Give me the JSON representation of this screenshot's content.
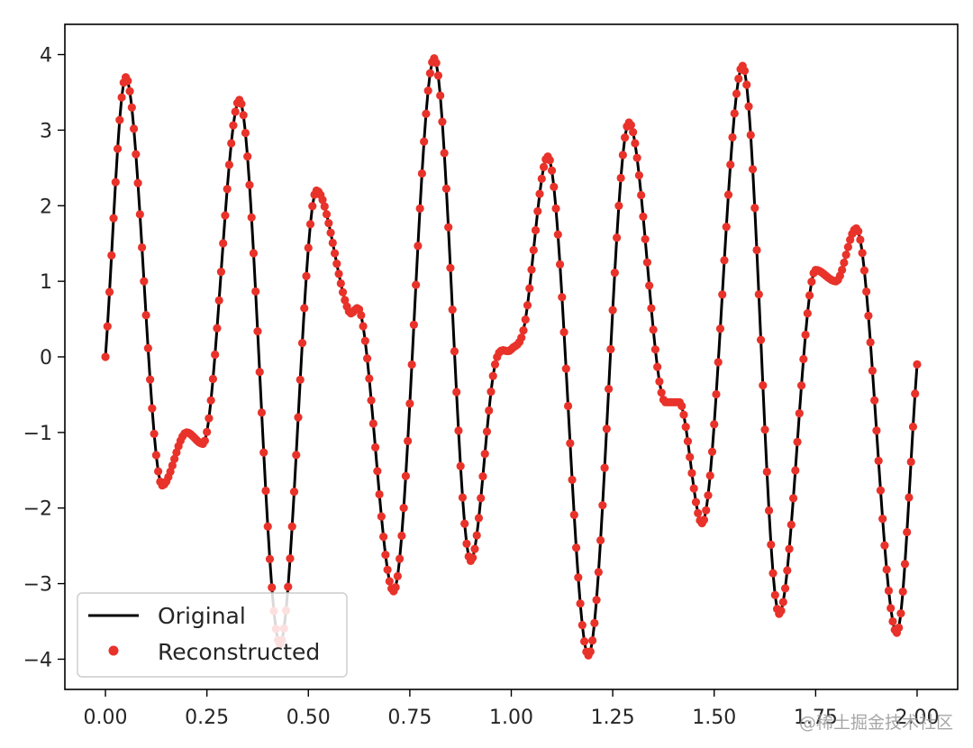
{
  "chart_data": {
    "type": "line",
    "title": "",
    "xlabel": "",
    "ylabel": "",
    "xlim": [
      -0.1,
      2.1
    ],
    "ylim": [
      -4.4,
      4.4
    ],
    "x_ticks": [
      0.0,
      0.25,
      0.5,
      0.75,
      1.0,
      1.25,
      1.5,
      1.75,
      2.0
    ],
    "x_tick_labels": [
      "0.00",
      "0.25",
      "0.50",
      "0.75",
      "1.00",
      "1.25",
      "1.50",
      "1.75",
      "2.00"
    ],
    "y_ticks": [
      4,
      3,
      2,
      1,
      0,
      -1,
      -2,
      -3,
      -4
    ],
    "y_tick_labels": [
      "4",
      "3",
      "2",
      "1",
      "0",
      "−1",
      "−2",
      "−3",
      "−4"
    ],
    "grid": false,
    "legend_position": "lower-left",
    "sample_count": 401,
    "series": [
      {
        "name": "Original",
        "style": "line",
        "color": "#000000",
        "x": [
          0.0,
          0.05,
          0.14,
          0.2,
          0.24,
          0.33,
          0.43,
          0.52,
          0.6,
          0.63,
          0.71,
          0.81,
          0.9,
          0.96,
          1.0,
          1.03,
          1.09,
          1.19,
          1.29,
          1.38,
          1.41,
          1.42,
          1.47,
          1.57,
          1.66,
          1.75,
          1.8,
          1.85,
          1.95,
          2.0
        ],
        "y": [
          0.0,
          3.7,
          -1.7,
          -1.0,
          -1.15,
          3.4,
          -3.8,
          2.2,
          0.6,
          0.55,
          -3.1,
          3.95,
          -2.7,
          -0.1,
          0.1,
          0.35,
          2.65,
          -3.95,
          3.1,
          -0.6,
          -0.6,
          -0.65,
          -2.2,
          3.85,
          -3.4,
          1.15,
          1.0,
          1.7,
          -3.65,
          -0.1
        ]
      },
      {
        "name": "Reconstructed",
        "style": "markers",
        "color": "#e8322a",
        "x": [
          0.0,
          0.05,
          0.14,
          0.2,
          0.24,
          0.33,
          0.43,
          0.52,
          0.6,
          0.63,
          0.71,
          0.81,
          0.9,
          0.96,
          1.0,
          1.03,
          1.09,
          1.19,
          1.29,
          1.38,
          1.41,
          1.42,
          1.47,
          1.57,
          1.66,
          1.75,
          1.8,
          1.85,
          1.95,
          2.0
        ],
        "y": [
          0.0,
          3.7,
          -1.7,
          -1.0,
          -1.15,
          3.4,
          -3.8,
          2.2,
          0.6,
          0.55,
          -3.1,
          3.95,
          -2.7,
          -0.1,
          0.1,
          0.35,
          2.65,
          -3.95,
          3.1,
          -0.6,
          -0.6,
          -0.65,
          -2.2,
          3.85,
          -3.4,
          1.15,
          1.0,
          1.7,
          -3.65,
          -0.1
        ]
      }
    ]
  },
  "watermark": "@稀土掘金技术社区"
}
